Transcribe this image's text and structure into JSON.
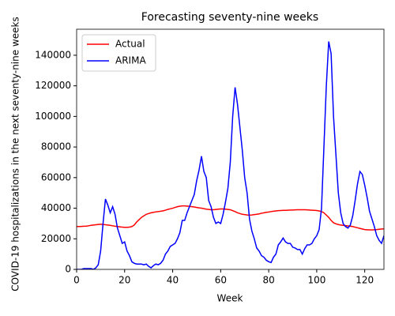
{
  "chart_data": {
    "type": "line",
    "title": "Forecasting seventy-nine weeks",
    "xlabel": "Week",
    "ylabel": "COVID-19 hospitalizations in the next seventy-nine weeks",
    "x": [
      0,
      1,
      2,
      3,
      4,
      5,
      6,
      7,
      8,
      9,
      10,
      11,
      12,
      13,
      14,
      15,
      16,
      17,
      18,
      19,
      20,
      21,
      22,
      23,
      24,
      25,
      26,
      27,
      28,
      29,
      30,
      31,
      32,
      33,
      34,
      35,
      36,
      37,
      38,
      39,
      40,
      41,
      42,
      43,
      44,
      45,
      46,
      47,
      48,
      49,
      50,
      51,
      52,
      53,
      54,
      55,
      56,
      57,
      58,
      59,
      60,
      61,
      62,
      63,
      64,
      65,
      66,
      67,
      68,
      69,
      70,
      71,
      72,
      73,
      74,
      75,
      76,
      77,
      78,
      79,
      80,
      81,
      82,
      83,
      84,
      85,
      86,
      87,
      88,
      89,
      90,
      91,
      92,
      93,
      94,
      95,
      96,
      97,
      98,
      99,
      100,
      101,
      102,
      103,
      104,
      105,
      106,
      107,
      108,
      109,
      110,
      111,
      112,
      113,
      114,
      115,
      116,
      117,
      118,
      119,
      120,
      121,
      122,
      123,
      124,
      125,
      126,
      127,
      128
    ],
    "series": [
      {
        "name": "Actual",
        "color": "#ff0000",
        "values": [
          28000,
          28000,
          28100,
          28200,
          28300,
          28500,
          28800,
          29000,
          29200,
          29400,
          29500,
          29400,
          29200,
          29000,
          28800,
          28500,
          28200,
          28000,
          27800,
          27600,
          27500,
          27500,
          27600,
          28000,
          29000,
          31000,
          32500,
          34000,
          35000,
          36000,
          36500,
          37000,
          37300,
          37600,
          37800,
          38000,
          38300,
          38700,
          39200,
          39600,
          40000,
          40500,
          41000,
          41300,
          41500,
          41500,
          41400,
          41200,
          41000,
          40800,
          40500,
          40200,
          40000,
          39700,
          39400,
          39200,
          39000,
          39000,
          39200,
          39400,
          39500,
          39500,
          39400,
          39200,
          39000,
          38400,
          37800,
          37000,
          36500,
          36000,
          35800,
          35600,
          35500,
          35600,
          35800,
          36000,
          36300,
          36700,
          37000,
          37300,
          37500,
          37800,
          38000,
          38200,
          38400,
          38500,
          38600,
          38600,
          38700,
          38800,
          38800,
          38900,
          39000,
          39000,
          39000,
          39000,
          38900,
          38800,
          38700,
          38600,
          38500,
          38200,
          37800,
          37000,
          35500,
          34000,
          32000,
          30500,
          29800,
          29300,
          29000,
          28800,
          28600,
          28400,
          28200,
          28000,
          27600,
          27200,
          26800,
          26400,
          26000,
          25900,
          25800,
          25800,
          25900,
          26000,
          26200,
          26400,
          26500
        ]
      },
      {
        "name": "ARIMA",
        "color": "#0000ff",
        "values": [
          0,
          0,
          0,
          500,
          500,
          500,
          500,
          0,
          1000,
          3000,
          12000,
          30000,
          46000,
          42000,
          37000,
          41000,
          36000,
          27000,
          22000,
          17000,
          18000,
          12000,
          9000,
          5000,
          4000,
          3500,
          3500,
          3500,
          3000,
          3500,
          2000,
          1000,
          2500,
          3500,
          3000,
          4000,
          6000,
          10000,
          12000,
          15000,
          16000,
          17000,
          20000,
          24000,
          32000,
          32000,
          37000,
          41000,
          45000,
          49000,
          58000,
          65000,
          74000,
          64000,
          60000,
          45000,
          41000,
          34000,
          30000,
          31000,
          30000,
          36000,
          44000,
          53000,
          70000,
          100000,
          119000,
          108000,
          93000,
          78000,
          60000,
          50000,
          33000,
          25000,
          20000,
          14000,
          12000,
          9000,
          8000,
          6000,
          5000,
          4500,
          8000,
          10000,
          16000,
          18000,
          20500,
          18000,
          17000,
          17000,
          14500,
          14000,
          13000,
          13000,
          10000,
          13500,
          16000,
          16000,
          17000,
          20000,
          22000,
          26000,
          40000,
          80000,
          120000,
          149000,
          141000,
          100000,
          75000,
          50000,
          37000,
          30000,
          28000,
          27000,
          29000,
          35000,
          45000,
          56000,
          64000,
          62000,
          55000,
          47000,
          38000,
          33000,
          28000,
          22000,
          19000,
          17000,
          22000
        ]
      }
    ],
    "xlim": [
      0,
      128
    ],
    "ylim": [
      0,
      157000
    ],
    "xticks": [
      0,
      20,
      40,
      60,
      80,
      100,
      120
    ],
    "yticks": [
      0,
      20000,
      40000,
      60000,
      80000,
      100000,
      120000,
      140000
    ],
    "legend": "upper left"
  }
}
